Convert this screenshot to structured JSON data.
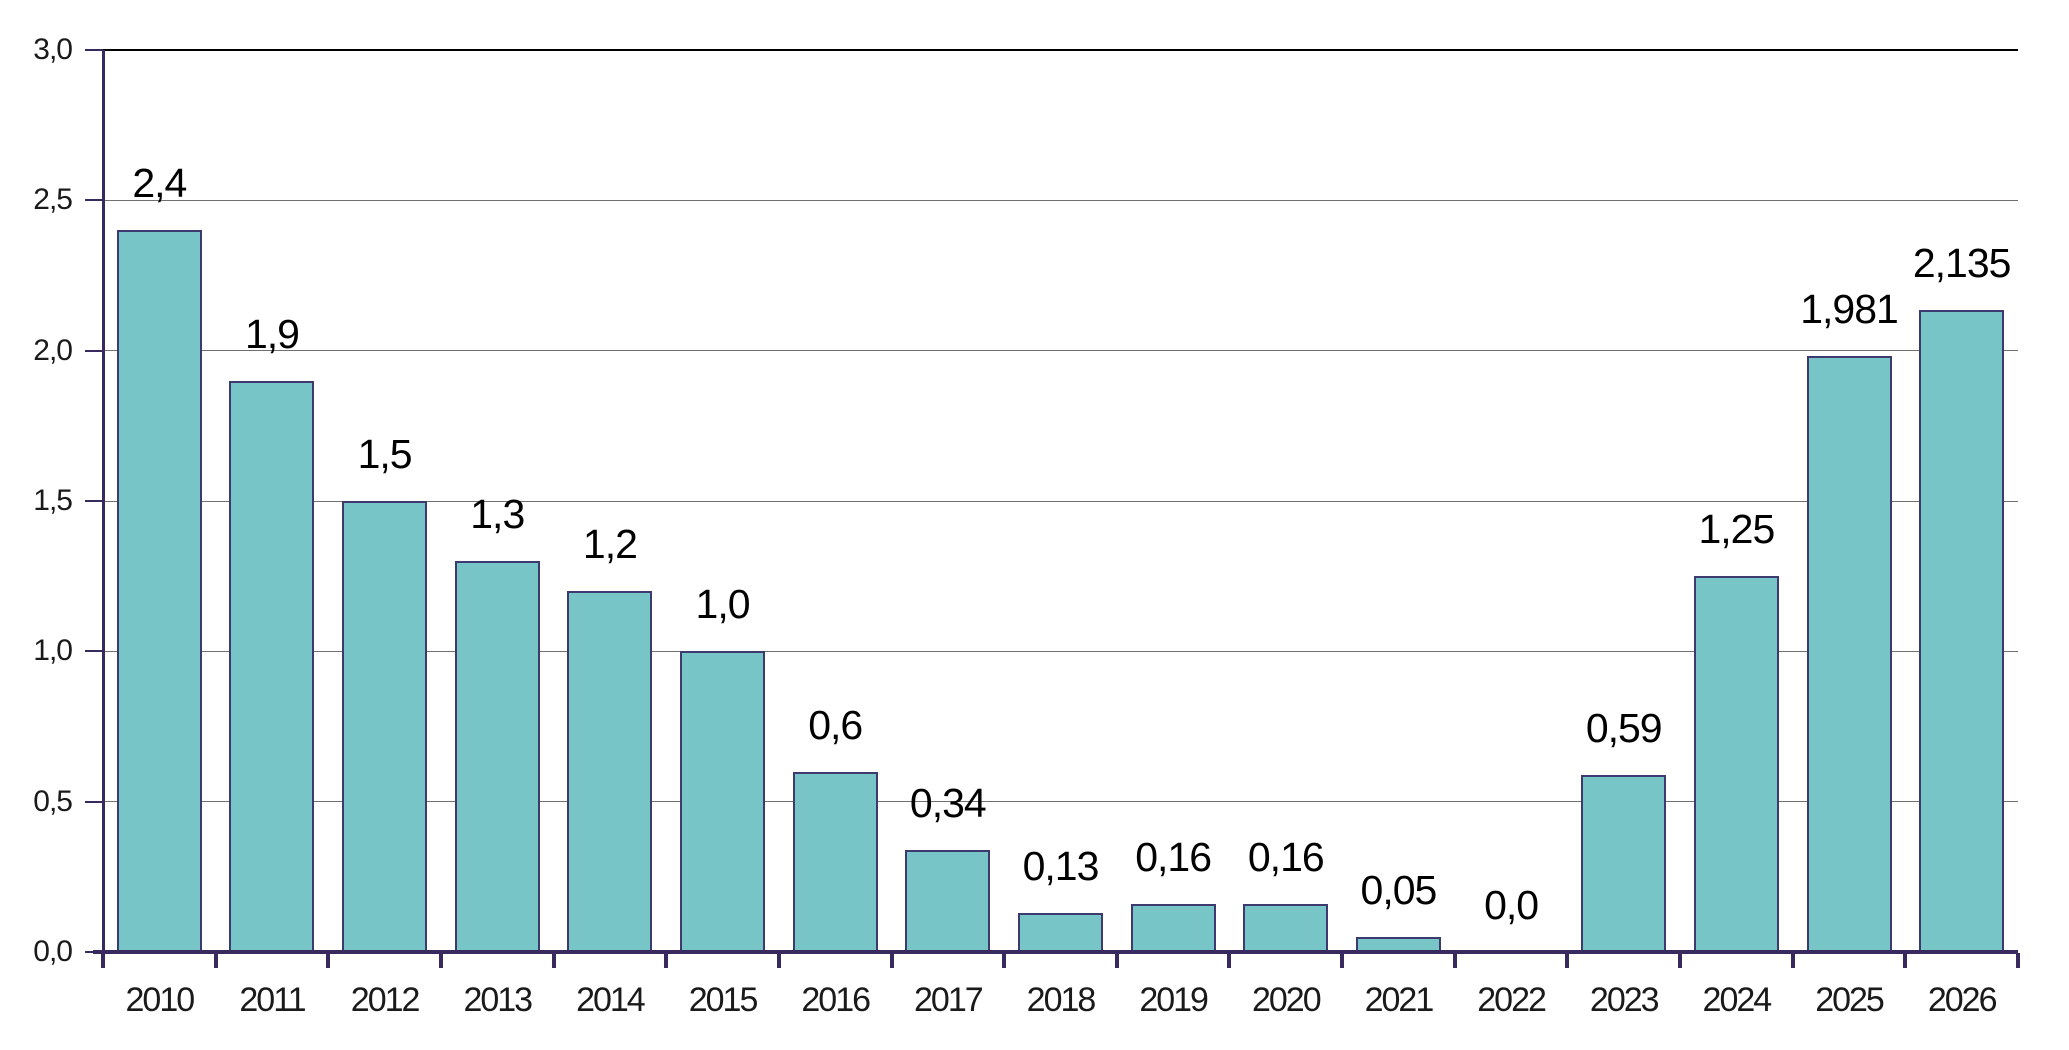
{
  "chart_data": {
    "type": "bar",
    "title": "",
    "xlabel": "",
    "ylabel": "",
    "categories": [
      "2010",
      "2011",
      "2012",
      "2013",
      "2014",
      "2015",
      "2016",
      "2017",
      "2018",
      "2019",
      "2020",
      "2021",
      "2022",
      "2023",
      "2024",
      "2025",
      "2026"
    ],
    "values": [
      2.4,
      1.9,
      1.5,
      1.3,
      1.2,
      1.0,
      0.6,
      0.34,
      0.13,
      0.16,
      0.16,
      0.05,
      0.0,
      0.59,
      1.25,
      1.981,
      2.135
    ],
    "value_labels": [
      "2,4",
      "1,9",
      "1,5",
      "1,3",
      "1,2",
      "1,0",
      "0,6",
      "0,34",
      "0,13",
      "0,16",
      "0,16",
      "0,05",
      "0,0",
      "0,59",
      "1,25",
      "1,981",
      "2,135"
    ],
    "ylim": [
      0,
      3
    ],
    "y_tick_step": 0.5,
    "y_tick_labels": [
      "0,0",
      "0,5",
      "1,0",
      "1,5",
      "2,0",
      "2,5",
      "3,0"
    ],
    "decimal_separator": ",",
    "grid": "horizontal",
    "legend": "none",
    "colors": {
      "bar_fill": "#78c5c8",
      "bar_border": "#3d3a70",
      "axis": "#382a5e",
      "gridline": "#707070",
      "top_gridline": "#000000",
      "label_text": "#000000"
    }
  }
}
